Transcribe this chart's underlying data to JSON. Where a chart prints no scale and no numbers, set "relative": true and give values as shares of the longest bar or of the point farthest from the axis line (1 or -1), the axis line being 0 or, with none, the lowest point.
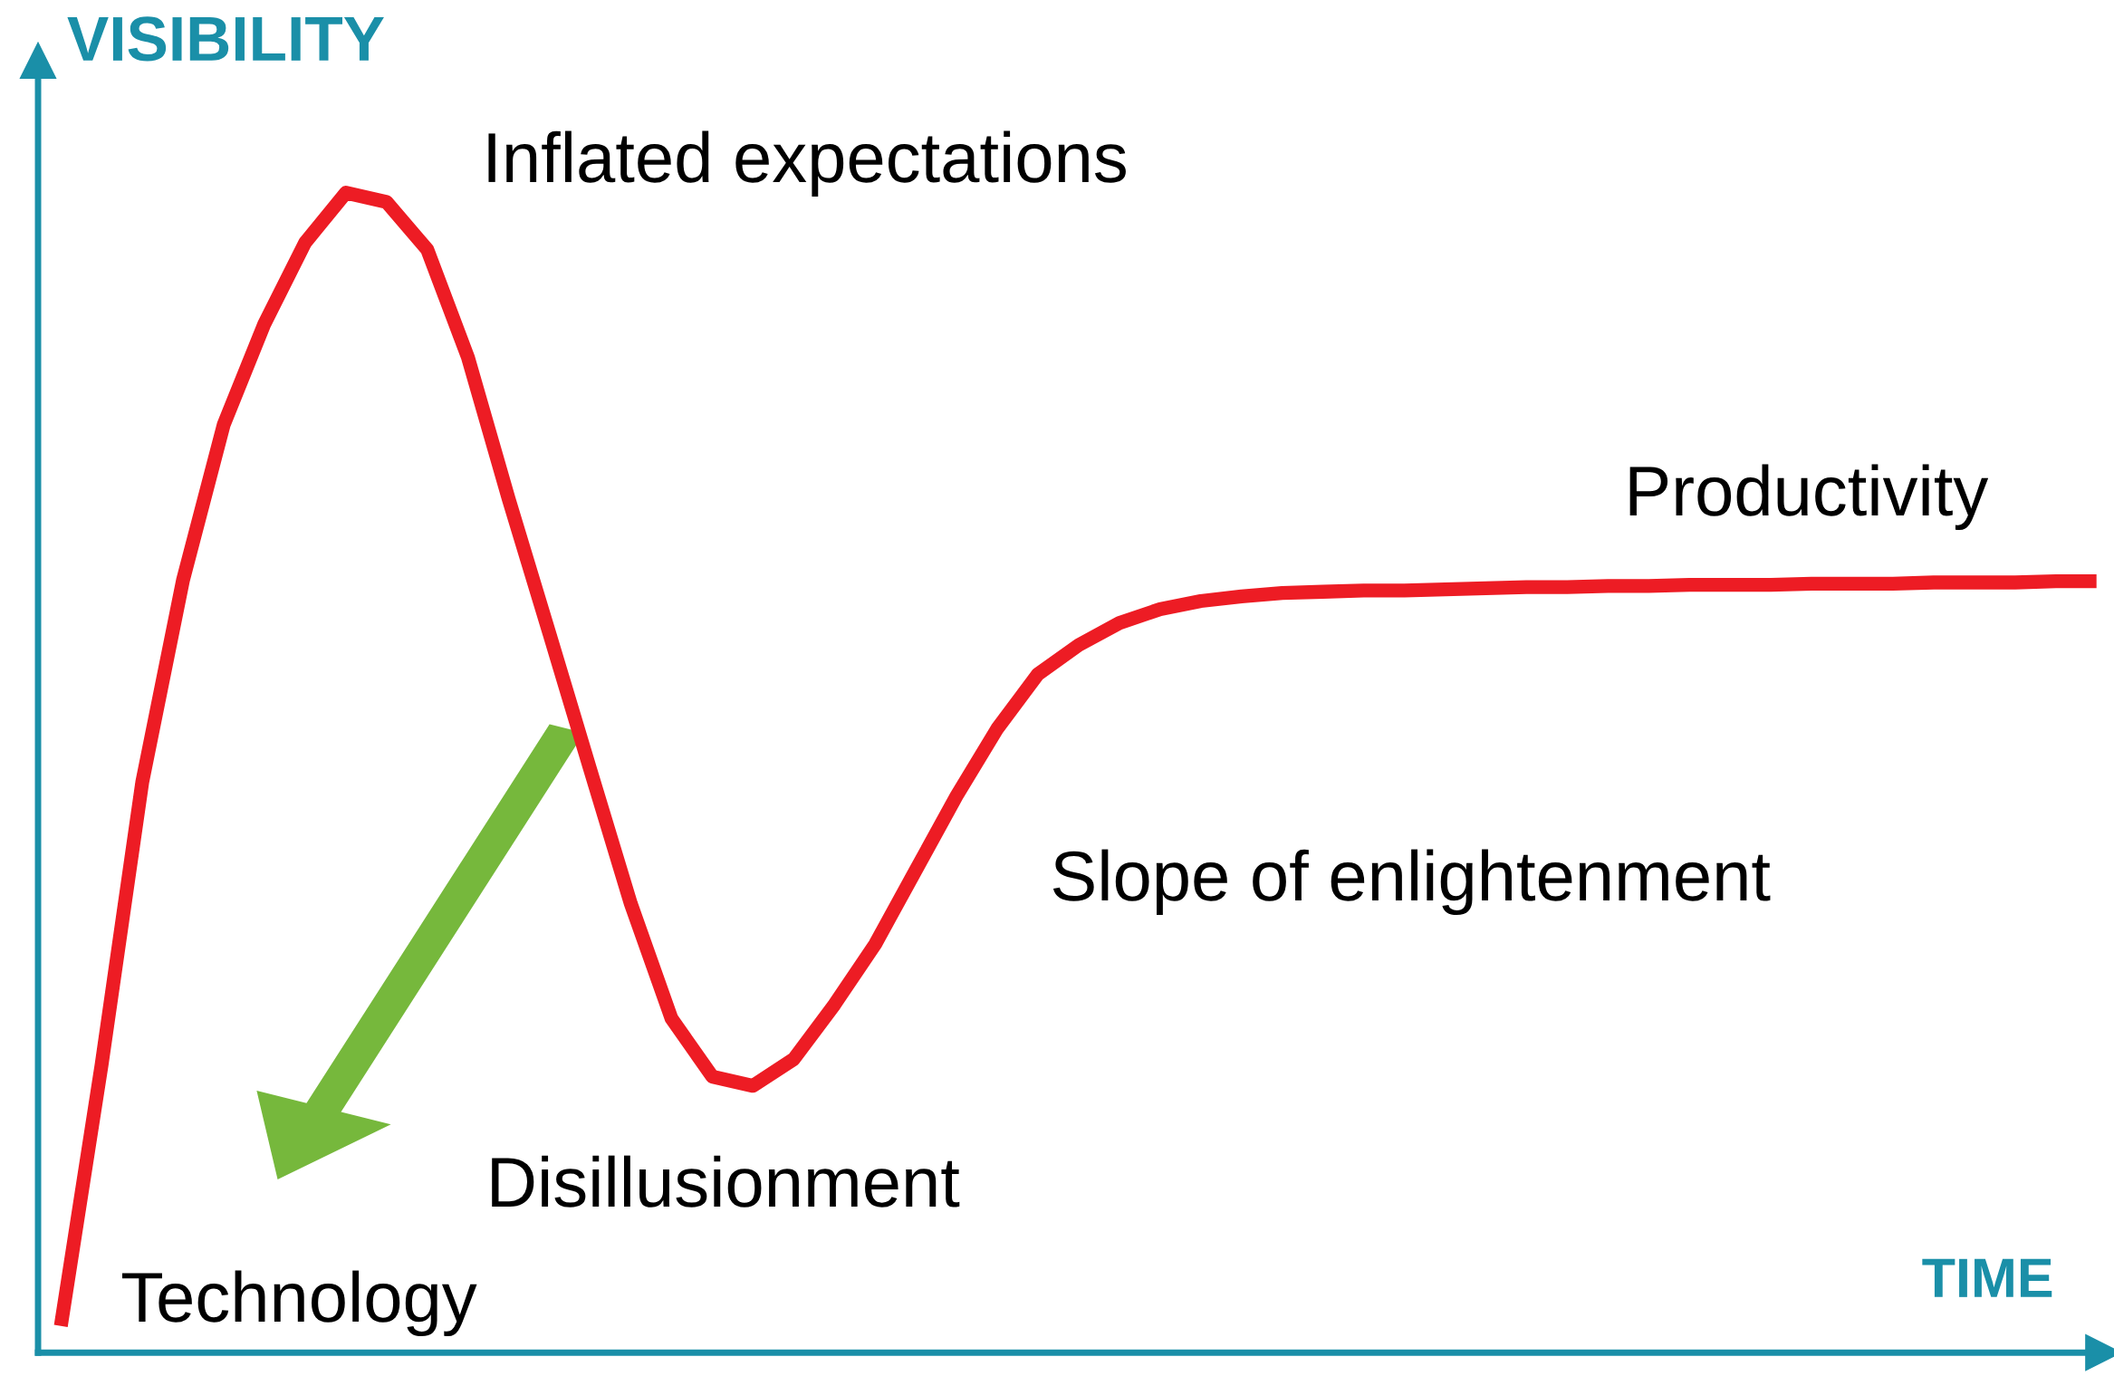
{
  "chart_data": {
    "type": "line",
    "relative": true,
    "xlabel": "TIME",
    "ylabel": "VISIBILITY",
    "line_style": "solid",
    "categories": [
      null,
      null,
      null,
      null,
      null,
      null,
      null,
      null,
      null,
      null,
      null,
      null,
      null,
      null,
      null,
      null,
      null,
      null,
      null,
      null,
      null,
      null,
      null,
      null,
      null,
      null,
      null,
      null,
      null,
      null,
      null,
      null,
      null,
      null,
      null,
      null,
      null,
      null,
      null,
      null,
      null,
      null,
      null,
      null,
      null,
      null,
      null,
      null,
      null,
      null,
      null
    ],
    "series": [
      {
        "color": "#ed1c24",
        "values": [
          0.023,
          0.248,
          0.492,
          0.666,
          0.8,
          0.887,
          0.957,
          1.0,
          0.992,
          0.951,
          0.858,
          0.736,
          0.62,
          0.503,
          0.387,
          0.288,
          0.238,
          0.23,
          0.253,
          0.3,
          0.352,
          0.416,
          0.48,
          0.538,
          0.585,
          0.61,
          0.629,
          0.641,
          0.648,
          0.652,
          0.655,
          0.656,
          0.657,
          0.657,
          0.658,
          0.659,
          0.66,
          0.66,
          0.661,
          0.661,
          0.662,
          0.662,
          0.662,
          0.663,
          0.663,
          0.663,
          0.664,
          0.664,
          0.664,
          0.665,
          0.665
        ]
      }
    ],
    "annotations": [
      "Inflated expectations",
      "Productivity",
      "Slope of enlightenment",
      "Disillusionment",
      "Technology"
    ]
  }
}
